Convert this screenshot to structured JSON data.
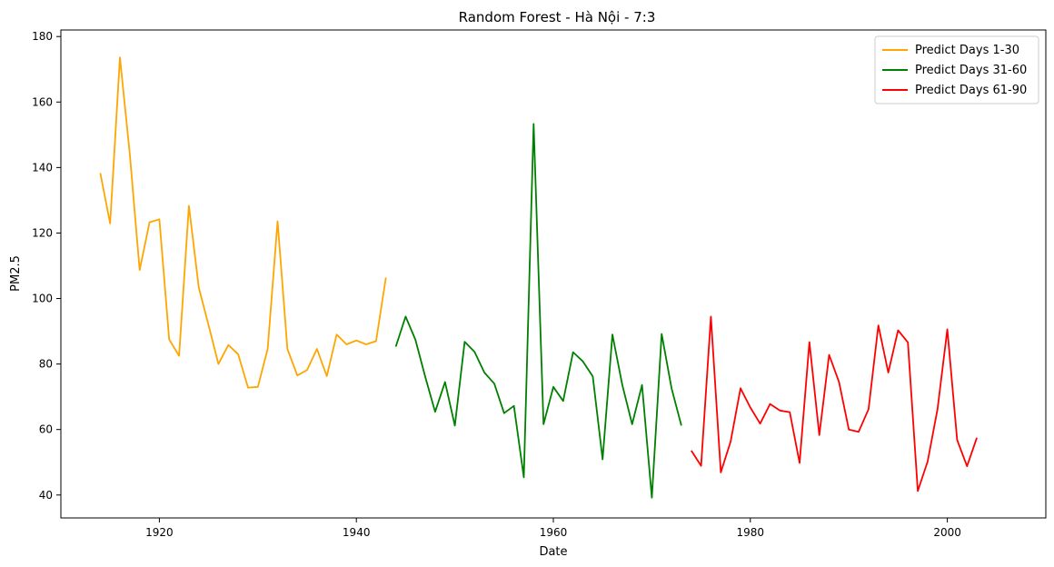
{
  "chart_data": {
    "type": "line",
    "title": "Random Forest - Hà Nội - 7:3",
    "xlabel": "Date",
    "ylabel": "PM2.5",
    "xlim": [
      1910,
      2010
    ],
    "ylim": [
      33,
      182
    ],
    "x_ticks": [
      1920,
      1940,
      1960,
      1980,
      2000
    ],
    "y_ticks": [
      40,
      60,
      80,
      100,
      120,
      140,
      160,
      180
    ],
    "grid": false,
    "legend_position": "top-right",
    "series": [
      {
        "name": "Predict Days 1-30",
        "color": "#ffa500",
        "x": [
          1914,
          1915,
          1916,
          1917,
          1918,
          1919,
          1920,
          1921,
          1922,
          1923,
          1924,
          1925,
          1926,
          1927,
          1928,
          1929,
          1930,
          1931,
          1932,
          1933,
          1934,
          1935,
          1936,
          1937,
          1938,
          1939,
          1940,
          1941,
          1942,
          1943
        ],
        "y": [
          138.3,
          122.9,
          173.6,
          144.0,
          108.7,
          123.3,
          124.2,
          87.5,
          82.5,
          128.3,
          103.3,
          91.8,
          80.0,
          85.8,
          83.0,
          72.8,
          73.0,
          84.6,
          123.6,
          84.6,
          76.5,
          78.2,
          84.6,
          76.3,
          89.0,
          86.0,
          87.2,
          86.0,
          87.0,
          106.4
        ]
      },
      {
        "name": "Predict Days 31-60",
        "color": "#008000",
        "x": [
          1944,
          1945,
          1946,
          1947,
          1948,
          1949,
          1950,
          1951,
          1952,
          1953,
          1954,
          1955,
          1956,
          1957,
          1958,
          1959,
          1960,
          1961,
          1962,
          1963,
          1964,
          1965,
          1966,
          1967,
          1968,
          1969,
          1970,
          1971,
          1972,
          1973
        ],
        "y": [
          85.3,
          94.5,
          87.4,
          76.0,
          65.4,
          74.5,
          61.2,
          86.8,
          83.7,
          77.4,
          74.0,
          65.0,
          67.2,
          45.4,
          153.3,
          61.6,
          73.0,
          68.7,
          83.6,
          80.8,
          76.2,
          50.9,
          89.0,
          73.6,
          61.6,
          73.6,
          39.2,
          89.2,
          72.6,
          61.2
        ]
      },
      {
        "name": "Predict Days 61-90",
        "color": "#ff0000",
        "x": [
          1974,
          1975,
          1976,
          1977,
          1978,
          1979,
          1980,
          1981,
          1982,
          1983,
          1984,
          1985,
          1986,
          1987,
          1988,
          1989,
          1990,
          1991,
          1992,
          1993,
          1994,
          1995,
          1996,
          1997,
          1998,
          1999,
          2000,
          2001,
          2002,
          2003
        ],
        "y": [
          53.6,
          48.9,
          94.5,
          46.9,
          56.3,
          72.6,
          66.7,
          61.8,
          67.8,
          65.8,
          65.3,
          49.8,
          86.7,
          58.3,
          82.8,
          74.5,
          60.0,
          59.3,
          66.2,
          91.8,
          77.4,
          90.3,
          86.6,
          41.2,
          50.2,
          66.2,
          90.6,
          56.8,
          48.8,
          57.5
        ]
      }
    ]
  }
}
